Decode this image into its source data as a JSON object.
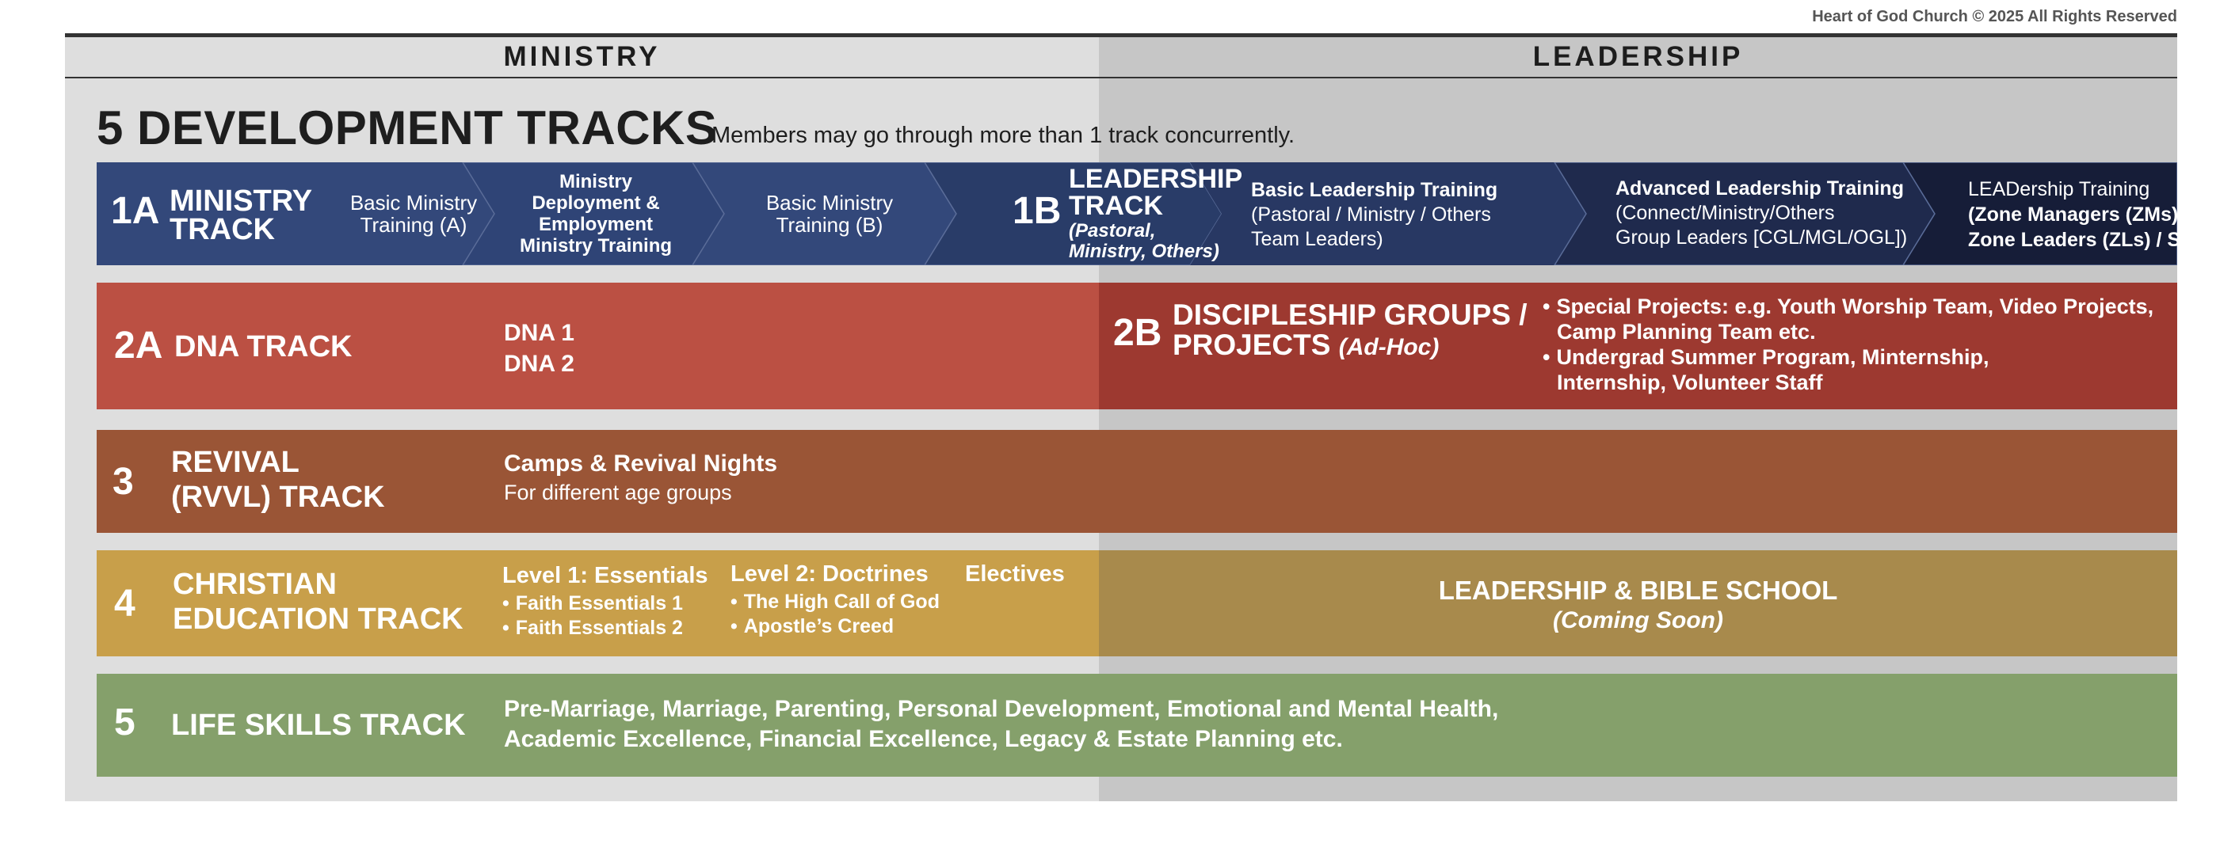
{
  "copyright": "Heart of God Church © 2025 All Rights Reserved",
  "columns": {
    "ministry": "MINISTRY",
    "leadership": "LEADERSHIP"
  },
  "title": "5 DEVELOPMENT TRACKS",
  "subtitle": "Members may go through more than 1 track concurrently.",
  "colors": {
    "track1": "#2e4373",
    "track1_dark": "#1b2343",
    "track2a": "#bb5043",
    "track2b": "#9d3930",
    "track3": "#9a5536",
    "track4": "#c89f4a",
    "track4_leadership": "#a88a4c",
    "track5": "#85a06b"
  },
  "track_1a": {
    "number": "1A",
    "title_line1": "MINISTRY",
    "title_line2": "TRACK",
    "steps": [
      {
        "line1": "Basic Ministry",
        "line2": "Training (A)"
      },
      {
        "line1": "Ministry",
        "line2": "Deployment &",
        "line3": "Employment",
        "line4": "Ministry Training"
      },
      {
        "line1": "Basic Ministry",
        "line2": "Training (B)"
      }
    ]
  },
  "track_1b": {
    "number": "1B",
    "title_line1": "LEADERSHIP",
    "title_line2": "TRACK",
    "note_line1": "(Pastoral,",
    "note_line2": "Ministry, Others)",
    "steps": [
      {
        "line1": "Basic Leadership Training",
        "line2": "(Pastoral / Ministry / Others",
        "line3": "Team Leaders)"
      },
      {
        "line1": "Advanced Leadership Training",
        "line2": "(Connect/Ministry/Others",
        "line3": "Group Leaders [CGL/MGL/OGL])"
      },
      {
        "line1": "LEADership Training",
        "line2": "(Zone Managers (ZMs) /",
        "line3": "Zone Leaders (ZLs) / Staff)"
      }
    ]
  },
  "track_2a": {
    "number": "2A",
    "title": "DNA TRACK",
    "items": [
      "DNA 1",
      "DNA 2"
    ]
  },
  "track_2b": {
    "number": "2B",
    "title_line1": "DISCIPLESHIP GROUPS /",
    "title_line2": "PROJECTS",
    "note": "(Ad-Hoc)",
    "bullets": [
      {
        "line1": "Special Projects: e.g. Youth Worship Team, Video Projects,",
        "line2": "Camp Planning Team etc."
      },
      {
        "line1": "Undergrad Summer Program, Minternship,",
        "line2": "Internship, Volunteer Staff"
      }
    ]
  },
  "track_3": {
    "number": "3",
    "title_line1": "REVIVAL",
    "title_line2": "(RVVL) TRACK",
    "heading": "Camps & Revival Nights",
    "detail": "For different age groups"
  },
  "track_4": {
    "number": "4",
    "title_line1": "CHRISTIAN",
    "title_line2": "EDUCATION TRACK",
    "levels": [
      {
        "heading": "Level 1: Essentials",
        "items": [
          "Faith Essentials 1",
          "Faith Essentials 2"
        ]
      },
      {
        "heading": "Level 2: Doctrines",
        "items": [
          "The High Call of God",
          "Apostle’s Creed"
        ]
      },
      {
        "heading": "Electives",
        "items": []
      }
    ],
    "leadership_title": "LEADERSHIP & BIBLE SCHOOL",
    "leadership_note": "(Coming Soon)"
  },
  "track_5": {
    "number": "5",
    "title": "LIFE SKILLS TRACK",
    "line1": "Pre-Marriage, Marriage, Parenting, Personal Development, Emotional and Mental Health,",
    "line2": "Academic Excellence, Financial Excellence, Legacy & Estate Planning etc."
  }
}
